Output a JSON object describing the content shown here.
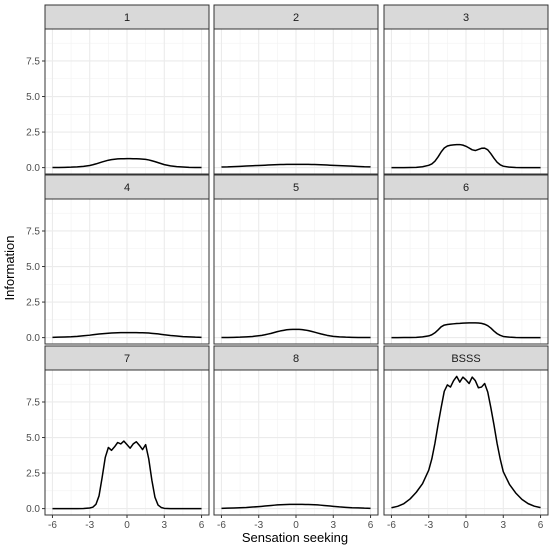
{
  "chart_data": {
    "type": "line",
    "facet_layout": "3x3",
    "xlabel": "Sensation seeking",
    "ylabel": "Information",
    "xlim": [
      -6.6,
      6.6
    ],
    "ylim": [
      -0.45,
      9.75
    ],
    "x_ticks": [
      -6,
      -3,
      0,
      3,
      6
    ],
    "y_ticks": [
      0.0,
      2.5,
      5.0,
      7.5
    ],
    "x_tick_labels": [
      "-6",
      "-3",
      "0",
      "3",
      "6"
    ],
    "y_tick_labels": [
      "0.0",
      "2.5",
      "5.0",
      "7.5"
    ],
    "grid": true,
    "colors": {
      "line": "#000000",
      "strip": "#d9d9d9",
      "grid": "#ebebeb",
      "border": "#333333"
    },
    "x": [
      -6,
      -5.5,
      -5,
      -4.5,
      -4,
      -3.5,
      -3,
      -2.75,
      -2.5,
      -2.25,
      -2,
      -1.75,
      -1.5,
      -1.25,
      -1,
      -0.75,
      -0.5,
      -0.25,
      0,
      0.25,
      0.5,
      0.75,
      1,
      1.25,
      1.5,
      1.75,
      2,
      2.25,
      2.5,
      2.75,
      3,
      3.5,
      4,
      4.5,
      5,
      5.5,
      6
    ],
    "panels": [
      {
        "label": "1",
        "y": [
          0.01,
          0.01,
          0.02,
          0.03,
          0.05,
          0.09,
          0.15,
          0.2,
          0.26,
          0.33,
          0.4,
          0.46,
          0.52,
          0.56,
          0.59,
          0.61,
          0.62,
          0.62,
          0.63,
          0.63,
          0.62,
          0.62,
          0.61,
          0.6,
          0.58,
          0.54,
          0.48,
          0.42,
          0.35,
          0.28,
          0.21,
          0.12,
          0.07,
          0.04,
          0.02,
          0.01,
          0.01
        ]
      },
      {
        "label": "2",
        "y": [
          0.04,
          0.05,
          0.07,
          0.09,
          0.11,
          0.13,
          0.15,
          0.16,
          0.17,
          0.18,
          0.19,
          0.2,
          0.21,
          0.22,
          0.22,
          0.23,
          0.23,
          0.23,
          0.23,
          0.23,
          0.23,
          0.23,
          0.23,
          0.22,
          0.22,
          0.21,
          0.2,
          0.19,
          0.18,
          0.17,
          0.16,
          0.14,
          0.12,
          0.1,
          0.08,
          0.06,
          0.05
        ]
      },
      {
        "label": "3",
        "y": [
          0,
          0,
          0,
          0.01,
          0.02,
          0.06,
          0.16,
          0.26,
          0.45,
          0.75,
          1.1,
          1.38,
          1.52,
          1.57,
          1.6,
          1.62,
          1.62,
          1.58,
          1.5,
          1.38,
          1.25,
          1.2,
          1.28,
          1.36,
          1.37,
          1.25,
          0.98,
          0.66,
          0.38,
          0.2,
          0.1,
          0.03,
          0.01,
          0,
          0,
          0,
          0
        ]
      },
      {
        "label": "4",
        "y": [
          0.02,
          0.03,
          0.04,
          0.06,
          0.09,
          0.13,
          0.17,
          0.2,
          0.23,
          0.25,
          0.27,
          0.29,
          0.31,
          0.32,
          0.33,
          0.34,
          0.35,
          0.35,
          0.35,
          0.35,
          0.35,
          0.35,
          0.34,
          0.34,
          0.33,
          0.32,
          0.3,
          0.28,
          0.26,
          0.23,
          0.2,
          0.15,
          0.11,
          0.07,
          0.05,
          0.03,
          0.02
        ]
      },
      {
        "label": "5",
        "y": [
          0.01,
          0.01,
          0.02,
          0.03,
          0.05,
          0.08,
          0.13,
          0.16,
          0.2,
          0.25,
          0.3,
          0.36,
          0.42,
          0.47,
          0.51,
          0.55,
          0.57,
          0.58,
          0.58,
          0.58,
          0.56,
          0.53,
          0.49,
          0.44,
          0.38,
          0.32,
          0.26,
          0.21,
          0.16,
          0.12,
          0.09,
          0.05,
          0.03,
          0.02,
          0.01,
          0.01,
          0.01
        ]
      },
      {
        "label": "6",
        "y": [
          0,
          0,
          0.01,
          0.01,
          0.02,
          0.05,
          0.12,
          0.2,
          0.34,
          0.54,
          0.76,
          0.88,
          0.92,
          0.95,
          0.97,
          0.99,
          1.0,
          1.02,
          1.03,
          1.04,
          1.04,
          1.04,
          1.03,
          1.0,
          0.94,
          0.84,
          0.67,
          0.46,
          0.28,
          0.16,
          0.08,
          0.03,
          0.01,
          0,
          0,
          0,
          0
        ]
      },
      {
        "label": "7",
        "y": [
          0,
          0,
          0,
          0,
          0,
          0.01,
          0.04,
          0.1,
          0.3,
          0.9,
          2.2,
          3.6,
          4.3,
          4.1,
          4.35,
          4.65,
          4.55,
          4.75,
          4.5,
          4.25,
          4.55,
          4.7,
          4.45,
          4.15,
          4.5,
          3.5,
          2.0,
          0.8,
          0.25,
          0.08,
          0.02,
          0,
          0,
          0,
          0,
          0,
          0
        ]
      },
      {
        "label": "8",
        "y": [
          0.02,
          0.03,
          0.04,
          0.06,
          0.08,
          0.11,
          0.14,
          0.16,
          0.18,
          0.2,
          0.22,
          0.24,
          0.26,
          0.27,
          0.28,
          0.29,
          0.3,
          0.3,
          0.3,
          0.3,
          0.3,
          0.29,
          0.29,
          0.28,
          0.27,
          0.26,
          0.24,
          0.22,
          0.2,
          0.18,
          0.16,
          0.12,
          0.09,
          0.06,
          0.05,
          0.03,
          0.02
        ]
      },
      {
        "label": "BSSS",
        "y": [
          0.06,
          0.16,
          0.35,
          0.68,
          1.15,
          1.75,
          2.7,
          3.5,
          4.6,
          5.9,
          7.1,
          8.25,
          8.7,
          8.55,
          9.0,
          9.3,
          8.9,
          9.25,
          9.05,
          8.8,
          9.25,
          9.0,
          8.5,
          8.55,
          8.8,
          8.2,
          7.1,
          5.9,
          4.6,
          3.5,
          2.6,
          1.7,
          1.1,
          0.65,
          0.35,
          0.17,
          0.07
        ]
      }
    ]
  }
}
